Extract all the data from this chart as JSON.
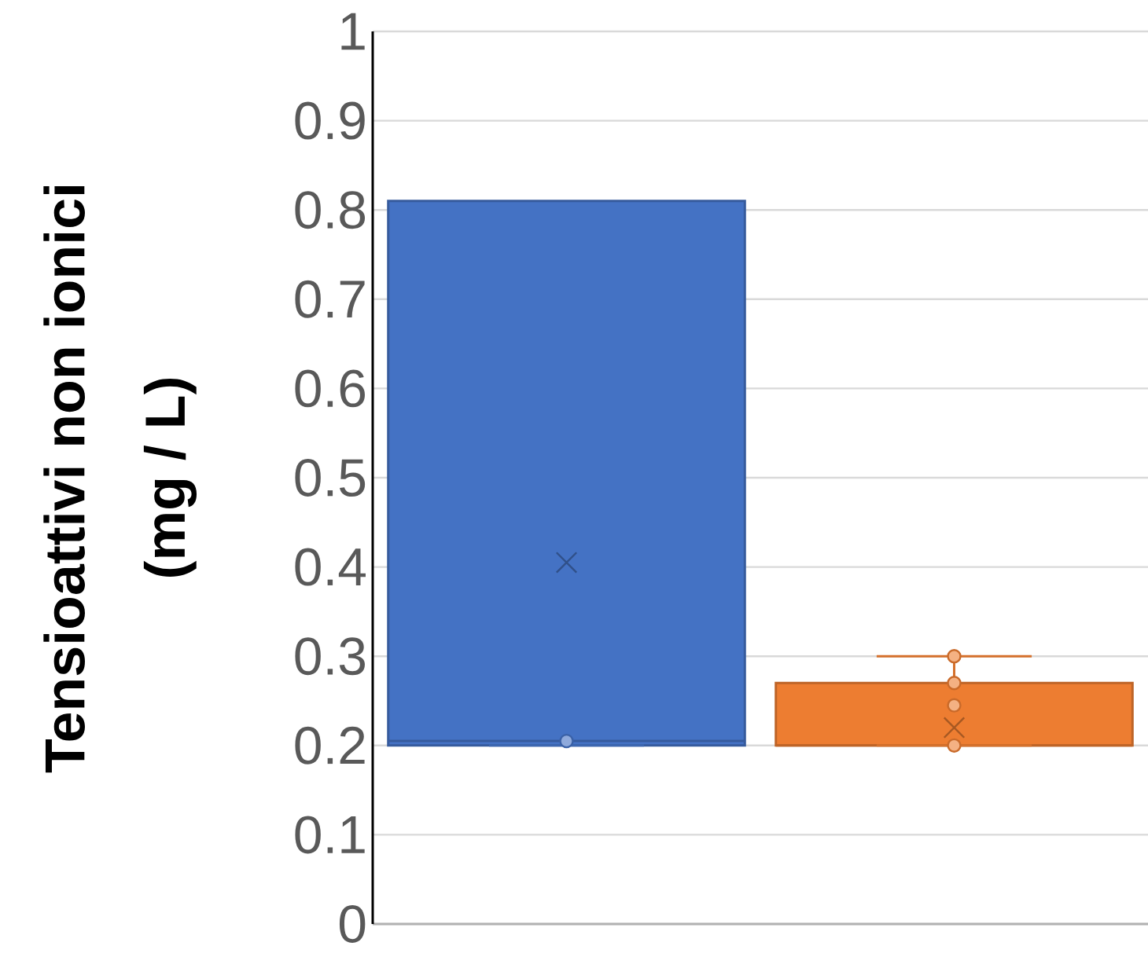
{
  "chart_data": {
    "type": "box",
    "ylabel": "Tensioattivi non ionici (mg / L)",
    "categories": [
      null,
      null
    ],
    "colors": [
      "#4472c4",
      "#ed7d31"
    ],
    "boxes": [
      {
        "low": 0.2,
        "q1": 0.2,
        "median": 0.205,
        "q3": 0.81,
        "high": 0.81,
        "mean": 0.405,
        "outliers": [
          0.205
        ]
      },
      {
        "low": 0.2,
        "q1": 0.2,
        "median": 0.2,
        "q3": 0.27,
        "high": 0.3,
        "mean": 0.22,
        "outliers": [
          0.2,
          0.245,
          0.27,
          0.3
        ]
      }
    ],
    "ylim": [
      0,
      1
    ],
    "yticks": [
      0,
      0.1,
      0.2,
      0.3,
      0.4,
      0.5,
      0.6,
      0.7,
      0.8,
      0.9,
      1
    ],
    "grid": "y"
  }
}
